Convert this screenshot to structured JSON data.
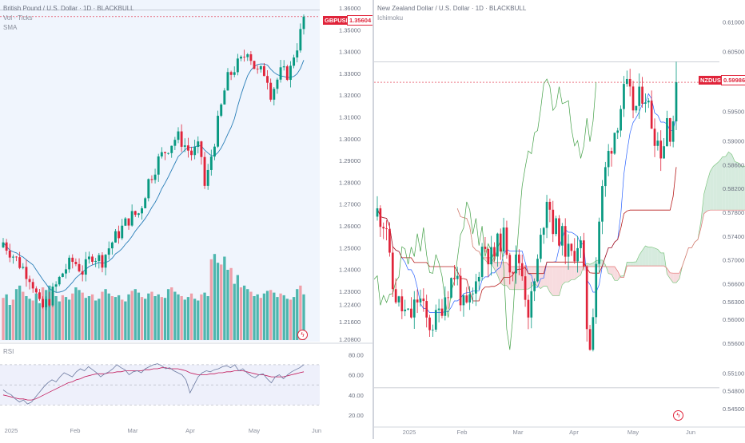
{
  "left_chart": {
    "title": "British Pound / U.S. Dollar · 1D · BLACKBULL",
    "indicator1": "Vol · Ticks",
    "indicator2": "SMA",
    "rsi_label": "RSI",
    "symbol_tag": "GBPUSD",
    "last_price": "1.35604"
  },
  "right_chart": {
    "title": "New Zealand Dollar / U.S. Dollar · 1D · BLACKBULL",
    "indicator1": "Ichimoku",
    "symbol_tag": "NZDUSD",
    "last_price": "0.59986"
  },
  "colors": {
    "up": "#089981",
    "down": "#e0243a",
    "vol_up": "#26a69a",
    "vol_down": "#ef8a94",
    "sma": "#2a7fb8",
    "rsi_line": "#6c7aa0",
    "rsi_ma": "#c2185b",
    "tenkan": "#2962ff",
    "kijun": "#b71c1c",
    "chikou": "#43a047",
    "cloud_bull": "#cfe8d8",
    "cloud_bear": "#f6d6d9"
  },
  "chart_data": [
    {
      "type": "candlestick",
      "title": "British Pound / U.S. Dollar · 1D · BLACKBULL",
      "symbol": "GBPUSD",
      "last_price": 1.35604,
      "x_ticks": [
        "2025",
        "Feb",
        "Mar",
        "Apr",
        "May",
        "Jun"
      ],
      "y_ticks": [
        "1.36000",
        "1.35000",
        "1.34000",
        "1.33000",
        "1.32000",
        "1.31000",
        "1.30000",
        "1.29000",
        "1.28000",
        "1.27000",
        "1.26000",
        "1.25000",
        "1.24000",
        "1.23000",
        "1.22400",
        "1.21600",
        "1.20800"
      ],
      "ylim": [
        1.208,
        1.36
      ],
      "indicators": [
        "Vol · Ticks",
        "SMA"
      ],
      "close_path": [
        [
          0,
          1.2525
        ],
        [
          6,
          1.244
        ],
        [
          12,
          1.236
        ],
        [
          16,
          1.221
        ],
        [
          20,
          1.227
        ],
        [
          26,
          1.24
        ],
        [
          30,
          1.244
        ],
        [
          34,
          1.239
        ],
        [
          38,
          1.247
        ],
        [
          42,
          1.244
        ],
        [
          46,
          1.252
        ],
        [
          50,
          1.258
        ],
        [
          54,
          1.264
        ],
        [
          58,
          1.266
        ],
        [
          62,
          1.281
        ],
        [
          66,
          1.29
        ],
        [
          70,
          1.296
        ],
        [
          74,
          1.301
        ],
        [
          76,
          1.299
        ],
        [
          80,
          1.293
        ],
        [
          84,
          1.296
        ],
        [
          86,
          1.276
        ],
        [
          88,
          1.289
        ],
        [
          92,
          1.31
        ],
        [
          95,
          1.326
        ],
        [
          98,
          1.332
        ],
        [
          102,
          1.336
        ],
        [
          104,
          1.342
        ],
        [
          108,
          1.33
        ],
        [
          112,
          1.331
        ],
        [
          114,
          1.321
        ],
        [
          118,
          1.33
        ],
        [
          122,
          1.33
        ],
        [
          124,
          1.34
        ],
        [
          126,
          1.345
        ],
        [
          128,
          1.356
        ]
      ],
      "volume": {
        "label": "Vol · Ticks",
        "bars": [
          48,
          52,
          40,
          46,
          58,
          62,
          55,
          50,
          47,
          45,
          53,
          42,
          60,
          57,
          62,
          55,
          50,
          44,
          51,
          49,
          46,
          53,
          60,
          57,
          54,
          48,
          50,
          52,
          45,
          47,
          55,
          58,
          53,
          50,
          49,
          51,
          46,
          44,
          52,
          56,
          58,
          54,
          49,
          47,
          53,
          55,
          50,
          52,
          49,
          48,
          58,
          60,
          55,
          52,
          50,
          46,
          49,
          53,
          47,
          45,
          52,
          54,
          50,
          92,
          98,
          88,
          86,
          95,
          80,
          82,
          64,
          74,
          60,
          62,
          58,
          55,
          50,
          52,
          48,
          53,
          56,
          57,
          54,
          49,
          53,
          51,
          47,
          46,
          49,
          58,
          62,
          52
        ],
        "max": 100
      },
      "rsi": {
        "label": "RSI",
        "y_ticks": [
          "80.00",
          "60.00",
          "40.00",
          "20.00"
        ],
        "ylim": [
          20,
          85
        ],
        "bands": [
          70,
          50,
          30
        ],
        "values": [
          45,
          42,
          40,
          36,
          33,
          35,
          31,
          33,
          38,
          43,
          48,
          52,
          55,
          53,
          58,
          62,
          60,
          58,
          63,
          66,
          64,
          68,
          65,
          62,
          58,
          61,
          63,
          66,
          70,
          67,
          65,
          60,
          63,
          64,
          62,
          66,
          68,
          70,
          71,
          69,
          66,
          67,
          64,
          62,
          60,
          55,
          42,
          50,
          58,
          62,
          64,
          63,
          65,
          66,
          68,
          69,
          67,
          70,
          64,
          66,
          62,
          59,
          57,
          60,
          61,
          56,
          52,
          58,
          60,
          56,
          60,
          63,
          65,
          67,
          70
        ],
        "ma_values": [
          40,
          39,
          38,
          37,
          36,
          36,
          35,
          35,
          36,
          38,
          40,
          42,
          44,
          46,
          48,
          50,
          52,
          53,
          55,
          56,
          58,
          59,
          60,
          61,
          61,
          61,
          62,
          62,
          63,
          63,
          64,
          64,
          64,
          64,
          64,
          65,
          65,
          66,
          66,
          67,
          67,
          66,
          66,
          66,
          65,
          64,
          62,
          61,
          60,
          60,
          60,
          61,
          61,
          62,
          62,
          63,
          63,
          64,
          64,
          64,
          63,
          62,
          61,
          60,
          60,
          59,
          58,
          58,
          58,
          58,
          59,
          60,
          61,
          62,
          63
        ]
      }
    },
    {
      "type": "candlestick",
      "title": "New Zealand Dollar / U.S. Dollar · 1D · BLACKBULL",
      "symbol": "NZDUSD",
      "last_price": 0.59986,
      "x_ticks": [
        "2025",
        "Feb",
        "Mar",
        "Apr",
        "May",
        "Jun"
      ],
      "y_ticks": [
        "0.61000",
        "0.60500",
        "0.60000",
        "0.59500",
        "0.59000",
        "0.58600",
        "0.58200",
        "0.57800",
        "0.57400",
        "0.57000",
        "0.56600",
        "0.56300",
        "0.56000",
        "0.55600",
        "0.55100",
        "0.54800",
        "0.54500"
      ],
      "ylim": [
        0.545,
        0.611
      ],
      "indicators": [
        "Ichimoku"
      ],
      "close_path": [
        [
          0,
          0.578
        ],
        [
          4,
          0.576
        ],
        [
          6,
          0.566
        ],
        [
          10,
          0.562
        ],
        [
          14,
          0.56
        ],
        [
          18,
          0.564
        ],
        [
          22,
          0.559
        ],
        [
          26,
          0.56
        ],
        [
          30,
          0.565
        ],
        [
          34,
          0.568
        ],
        [
          38,
          0.561
        ],
        [
          42,
          0.564
        ],
        [
          46,
          0.573
        ],
        [
          50,
          0.57
        ],
        [
          54,
          0.574
        ],
        [
          56,
          0.573
        ],
        [
          58,
          0.569
        ],
        [
          62,
          0.57
        ],
        [
          66,
          0.561
        ],
        [
          70,
          0.57
        ],
        [
          74,
          0.582
        ],
        [
          76,
          0.576
        ],
        [
          80,
          0.574
        ],
        [
          84,
          0.57
        ],
        [
          88,
          0.574
        ],
        [
          90,
          0.566
        ],
        [
          92,
          0.554
        ],
        [
          94,
          0.563
        ],
        [
          96,
          0.575
        ],
        [
          98,
          0.582
        ],
        [
          100,
          0.587
        ],
        [
          104,
          0.593
        ],
        [
          108,
          0.599
        ],
        [
          112,
          0.595
        ],
        [
          116,
          0.599
        ],
        [
          120,
          0.592
        ],
        [
          124,
          0.588
        ],
        [
          126,
          0.594
        ],
        [
          128,
          0.591
        ],
        [
          130,
          0.5998
        ]
      ]
    }
  ]
}
